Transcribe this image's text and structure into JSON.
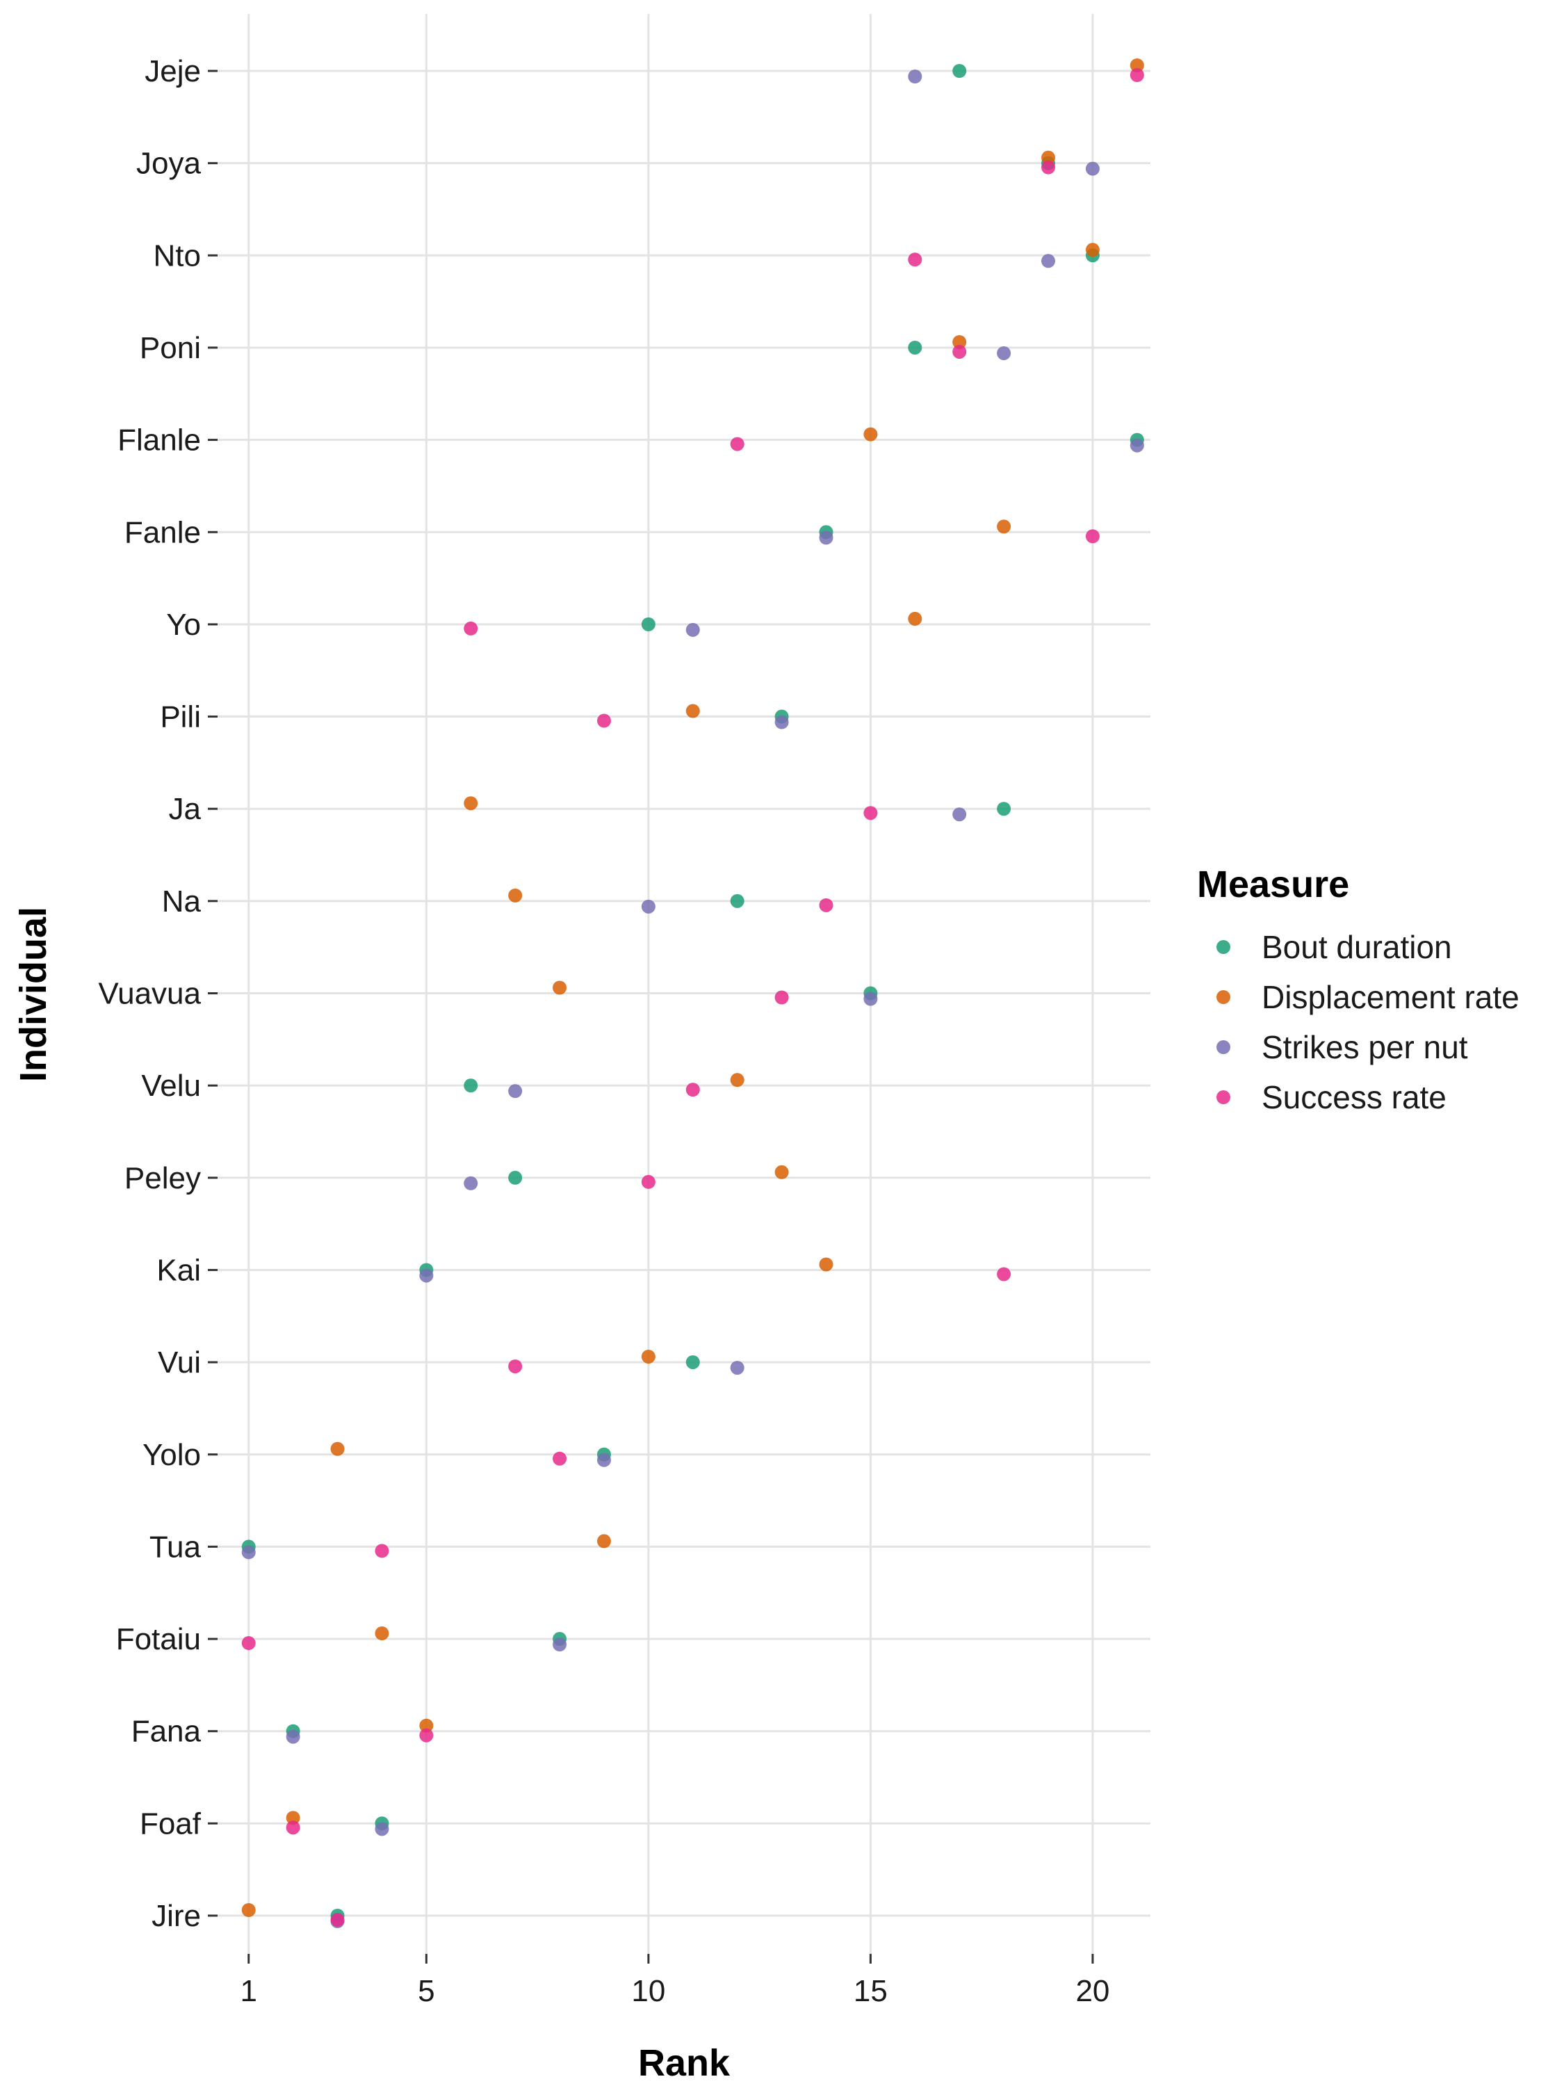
{
  "chart_data": {
    "type": "scatter",
    "xlabel": "Rank",
    "ylabel": "Individual",
    "x_ticks": [
      1,
      5,
      10,
      15,
      20
    ],
    "xlim": [
      0.3,
      21.3
    ],
    "grid": true,
    "legend": {
      "title": "Measure",
      "placement": "right",
      "entries": [
        "Bout duration",
        "Displacement rate",
        "Strikes per nut",
        "Success rate"
      ]
    },
    "colors": {
      "Bout duration": "#1b9e77",
      "Displacement rate": "#d95f02",
      "Strikes per nut": "#7570b3",
      "Success rate": "#e7298a"
    },
    "categories": [
      "Jeje",
      "Joya",
      "Nto",
      "Poni",
      "Flanle",
      "Fanle",
      "Yo",
      "Pili",
      "Ja",
      "Na",
      "Vuavua",
      "Velu",
      "Peley",
      "Kai",
      "Vui",
      "Yolo",
      "Tua",
      "Fotaiu",
      "Fana",
      "Foaf",
      "Jire"
    ],
    "series": [
      {
        "name": "Bout duration",
        "values": [
          17,
          19,
          20,
          16,
          21,
          14,
          10,
          13,
          18,
          12,
          15,
          6,
          7,
          5,
          11,
          9,
          1,
          8,
          2,
          4,
          3
        ]
      },
      {
        "name": "Displacement rate",
        "values": [
          21,
          19,
          20,
          17,
          15,
          18,
          16,
          11,
          6,
          7,
          8,
          12,
          13,
          14,
          10,
          3,
          9,
          4,
          5,
          2,
          1
        ]
      },
      {
        "name": "Strikes per nut",
        "values": [
          16,
          20,
          19,
          18,
          21,
          14,
          11,
          13,
          17,
          10,
          15,
          7,
          6,
          5,
          12,
          9,
          1,
          8,
          2,
          4,
          3
        ]
      },
      {
        "name": "Success rate",
        "values": [
          21,
          19,
          16,
          17,
          12,
          20,
          6,
          9,
          15,
          14,
          13,
          11,
          10,
          18,
          7,
          8,
          4,
          1,
          5,
          2,
          3
        ]
      }
    ]
  }
}
